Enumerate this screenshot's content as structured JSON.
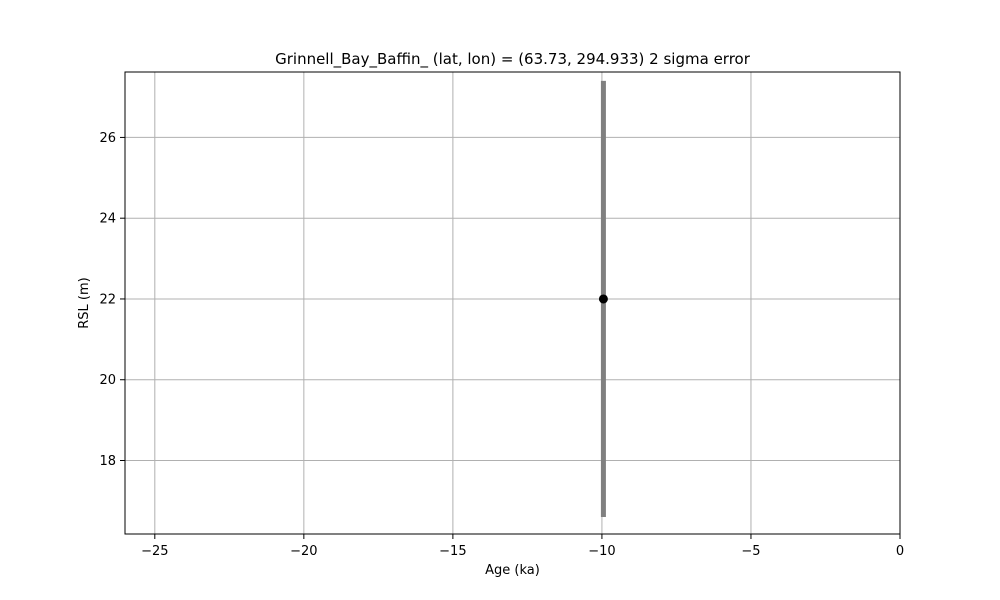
{
  "chart_data": {
    "type": "scatter",
    "title": "Grinnell_Bay_Baffin_ (lat, lon) = (63.73, 294.933)  2 sigma error",
    "xlabel": "Age (ka)",
    "ylabel": "RSL (m)",
    "xlim": [
      -26,
      0
    ],
    "ylim": [
      16.18,
      27.62
    ],
    "x_ticks": [
      -25,
      -20,
      -15,
      -10,
      -5,
      0
    ],
    "x_tick_labels": [
      "−25",
      "−20",
      "−15",
      "−10",
      "−5",
      "0"
    ],
    "y_ticks": [
      18,
      20,
      22,
      24,
      26
    ],
    "y_tick_labels": [
      "18",
      "20",
      "22",
      "24",
      "26"
    ],
    "grid": true,
    "points": [
      {
        "x": -9.95,
        "y": 22.0,
        "y_err_low": 16.6,
        "y_err_high": 27.4
      }
    ],
    "colors": {
      "point": "#000000",
      "error_bar": "#808080",
      "grid": "#b0b0b0"
    }
  }
}
